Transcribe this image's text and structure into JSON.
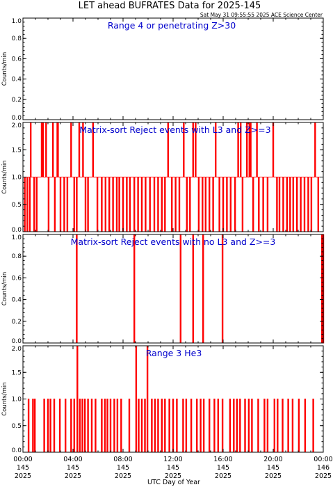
{
  "title": "LET ahead BUFRATES Data for 2025-145",
  "timestamp": "Sat May 31 09:55:55 2025 ACE Science Center",
  "xlabel": "UTC Day of Year",
  "ylabel": "Counts/min",
  "colors": {
    "series": "#ff0000",
    "label": "#0000cc",
    "axis": "#000000"
  },
  "x_ticks": [
    {
      "l1": "00:00",
      "l2": "145",
      "l3": "2025"
    },
    {
      "l1": "04:00",
      "l2": "145",
      "l3": "2025"
    },
    {
      "l1": "08:00",
      "l2": "145",
      "l3": "2025"
    },
    {
      "l1": "12:00",
      "l2": "145",
      "l3": "2025"
    },
    {
      "l1": "16:00",
      "l2": "145",
      "l3": "2025"
    },
    {
      "l1": "20:00",
      "l2": "145",
      "l3": "2025"
    },
    {
      "l1": "00:00",
      "l2": "146",
      "l3": "2025"
    }
  ],
  "chart_data": [
    {
      "type": "line",
      "label": "Range 4 or  penetrating Z>30",
      "xlim_hours": [
        0,
        24
      ],
      "ylim": [
        0,
        1.0
      ],
      "yticks": [
        "0.0",
        "0.2",
        "0.4",
        "0.6",
        "0.8",
        "1.0"
      ],
      "values": [],
      "baseline": 0
    },
    {
      "type": "line",
      "label": "Matrix-sort Reject events with L3 and Z>=3",
      "xlim_hours": [
        0,
        24
      ],
      "ylim": [
        0,
        2.0
      ],
      "yticks": [
        "0.0",
        "0.5",
        "1.0",
        "1.5",
        "2.0"
      ],
      "baseline": 1,
      "values": [
        {
          "t": 0.15,
          "v": 0
        },
        {
          "t": 0.35,
          "v": 0
        },
        {
          "t": 0.55,
          "v": 0
        },
        {
          "t": 0.62,
          "v": 2
        },
        {
          "t": 0.9,
          "v": 0
        },
        {
          "t": 1.1,
          "v": 0
        },
        {
          "t": 1.5,
          "v": 2
        },
        {
          "t": 1.6,
          "v": 2
        },
        {
          "t": 1.85,
          "v": 2
        },
        {
          "t": 2.05,
          "v": 0
        },
        {
          "t": 2.4,
          "v": 2
        },
        {
          "t": 2.55,
          "v": 0
        },
        {
          "t": 2.75,
          "v": 2
        },
        {
          "t": 2.8,
          "v": 2
        },
        {
          "t": 3.0,
          "v": 0
        },
        {
          "t": 3.3,
          "v": 0
        },
        {
          "t": 3.55,
          "v": 0
        },
        {
          "t": 3.85,
          "v": 2
        },
        {
          "t": 4.1,
          "v": 0
        },
        {
          "t": 4.3,
          "v": 0
        },
        {
          "t": 4.5,
          "v": 2
        },
        {
          "t": 4.8,
          "v": 2
        },
        {
          "t": 5.0,
          "v": 0
        },
        {
          "t": 5.2,
          "v": 0
        },
        {
          "t": 5.6,
          "v": 2
        },
        {
          "t": 5.95,
          "v": 0
        },
        {
          "t": 6.3,
          "v": 0
        },
        {
          "t": 6.6,
          "v": 0
        },
        {
          "t": 6.9,
          "v": 0
        },
        {
          "t": 7.2,
          "v": 0
        },
        {
          "t": 7.5,
          "v": 0
        },
        {
          "t": 7.7,
          "v": 0
        },
        {
          "t": 8.0,
          "v": 0
        },
        {
          "t": 8.3,
          "v": 0
        },
        {
          "t": 8.55,
          "v": 0
        },
        {
          "t": 8.9,
          "v": 0
        },
        {
          "t": 9.2,
          "v": 0
        },
        {
          "t": 9.5,
          "v": 0
        },
        {
          "t": 9.8,
          "v": 0
        },
        {
          "t": 10.15,
          "v": 0
        },
        {
          "t": 10.5,
          "v": 0
        },
        {
          "t": 10.8,
          "v": 0
        },
        {
          "t": 11.1,
          "v": 0
        },
        {
          "t": 11.35,
          "v": 0
        },
        {
          "t": 11.6,
          "v": 2
        },
        {
          "t": 11.9,
          "v": 0
        },
        {
          "t": 12.2,
          "v": 0
        },
        {
          "t": 12.5,
          "v": 0
        },
        {
          "t": 12.85,
          "v": 2
        },
        {
          "t": 13.1,
          "v": 0
        },
        {
          "t": 13.35,
          "v": 0
        },
        {
          "t": 13.6,
          "v": 2
        },
        {
          "t": 13.8,
          "v": 2
        },
        {
          "t": 14.05,
          "v": 0
        },
        {
          "t": 14.35,
          "v": 0
        },
        {
          "t": 14.6,
          "v": 0
        },
        {
          "t": 14.9,
          "v": 0
        },
        {
          "t": 15.2,
          "v": 0
        },
        {
          "t": 15.4,
          "v": 2
        },
        {
          "t": 15.7,
          "v": 0
        },
        {
          "t": 16.0,
          "v": 0
        },
        {
          "t": 16.3,
          "v": 0
        },
        {
          "t": 16.6,
          "v": 0
        },
        {
          "t": 16.95,
          "v": 0
        },
        {
          "t": 17.2,
          "v": 2
        },
        {
          "t": 17.4,
          "v": 2
        },
        {
          "t": 17.55,
          "v": 0
        },
        {
          "t": 17.9,
          "v": 2
        },
        {
          "t": 18.1,
          "v": 2
        },
        {
          "t": 18.2,
          "v": 2
        },
        {
          "t": 18.4,
          "v": 0
        },
        {
          "t": 18.7,
          "v": 2
        },
        {
          "t": 18.85,
          "v": 0
        },
        {
          "t": 19.2,
          "v": 0
        },
        {
          "t": 19.55,
          "v": 0
        },
        {
          "t": 20.0,
          "v": 2
        },
        {
          "t": 20.3,
          "v": 0
        },
        {
          "t": 20.5,
          "v": 0
        },
        {
          "t": 20.8,
          "v": 0
        },
        {
          "t": 21.1,
          "v": 0
        },
        {
          "t": 21.35,
          "v": 0
        },
        {
          "t": 21.6,
          "v": 0
        },
        {
          "t": 21.9,
          "v": 0
        },
        {
          "t": 22.2,
          "v": 0
        },
        {
          "t": 22.5,
          "v": 0
        },
        {
          "t": 22.8,
          "v": 0
        },
        {
          "t": 23.05,
          "v": 0
        },
        {
          "t": 23.35,
          "v": 2
        },
        {
          "t": 23.6,
          "v": 0
        }
      ]
    },
    {
      "type": "line",
      "label": "Matrix-sort Reject events with no L3 and Z>=3",
      "xlim_hours": [
        0,
        24
      ],
      "ylim": [
        0,
        1.0
      ],
      "yticks": [
        "0.0",
        "0.2",
        "0.4",
        "0.6",
        "0.8",
        "1.0"
      ],
      "baseline": 0,
      "values": [
        {
          "t": 4.3,
          "v": 1
        },
        {
          "t": 8.9,
          "v": 1
        },
        {
          "t": 12.6,
          "v": 1
        },
        {
          "t": 13.6,
          "v": 1
        },
        {
          "t": 14.4,
          "v": 1
        },
        {
          "t": 15.95,
          "v": 1
        },
        {
          "t": 23.9,
          "v": 1
        },
        {
          "t": 24.0,
          "v": 1
        }
      ]
    },
    {
      "type": "line",
      "label": "Range 3 He3",
      "xlim_hours": [
        0,
        24
      ],
      "ylim": [
        0,
        2.0
      ],
      "yticks": [
        "0.0",
        "0.5",
        "1.0",
        "1.5",
        "2.0"
      ],
      "baseline": 0,
      "values": [
        {
          "t": 0.45,
          "v": 1
        },
        {
          "t": 0.8,
          "v": 1
        },
        {
          "t": 0.95,
          "v": 1
        },
        {
          "t": 1.7,
          "v": 1
        },
        {
          "t": 2.0,
          "v": 1
        },
        {
          "t": 2.2,
          "v": 1
        },
        {
          "t": 2.5,
          "v": 1
        },
        {
          "t": 2.95,
          "v": 1
        },
        {
          "t": 3.4,
          "v": 1
        },
        {
          "t": 3.85,
          "v": 1
        },
        {
          "t": 4.1,
          "v": 1
        },
        {
          "t": 4.35,
          "v": 2
        },
        {
          "t": 4.55,
          "v": 1
        },
        {
          "t": 4.75,
          "v": 1
        },
        {
          "t": 4.95,
          "v": 1
        },
        {
          "t": 5.2,
          "v": 1
        },
        {
          "t": 5.5,
          "v": 1
        },
        {
          "t": 5.8,
          "v": 1
        },
        {
          "t": 6.3,
          "v": 1
        },
        {
          "t": 6.55,
          "v": 1
        },
        {
          "t": 6.75,
          "v": 1
        },
        {
          "t": 7.0,
          "v": 1
        },
        {
          "t": 7.3,
          "v": 1
        },
        {
          "t": 7.55,
          "v": 1
        },
        {
          "t": 7.85,
          "v": 1
        },
        {
          "t": 8.5,
          "v": 1
        },
        {
          "t": 9.05,
          "v": 2
        },
        {
          "t": 9.25,
          "v": 1
        },
        {
          "t": 9.5,
          "v": 1
        },
        {
          "t": 9.75,
          "v": 1
        },
        {
          "t": 9.95,
          "v": 2
        },
        {
          "t": 10.3,
          "v": 1
        },
        {
          "t": 10.55,
          "v": 1
        },
        {
          "t": 10.8,
          "v": 1
        },
        {
          "t": 11.1,
          "v": 1
        },
        {
          "t": 11.35,
          "v": 1
        },
        {
          "t": 11.7,
          "v": 1
        },
        {
          "t": 12.0,
          "v": 1
        },
        {
          "t": 12.3,
          "v": 1
        },
        {
          "t": 12.8,
          "v": 1
        },
        {
          "t": 13.05,
          "v": 1
        },
        {
          "t": 13.45,
          "v": 1
        },
        {
          "t": 13.9,
          "v": 1
        },
        {
          "t": 14.2,
          "v": 1
        },
        {
          "t": 14.45,
          "v": 1
        },
        {
          "t": 14.9,
          "v": 1
        },
        {
          "t": 15.3,
          "v": 1
        },
        {
          "t": 15.6,
          "v": 1
        },
        {
          "t": 15.95,
          "v": 1
        },
        {
          "t": 16.55,
          "v": 1
        },
        {
          "t": 16.85,
          "v": 1
        },
        {
          "t": 17.1,
          "v": 1
        },
        {
          "t": 17.35,
          "v": 1
        },
        {
          "t": 17.75,
          "v": 1
        },
        {
          "t": 18.05,
          "v": 1
        },
        {
          "t": 18.3,
          "v": 1
        },
        {
          "t": 18.8,
          "v": 1
        },
        {
          "t": 19.3,
          "v": 1
        },
        {
          "t": 19.55,
          "v": 1
        },
        {
          "t": 20.1,
          "v": 1
        },
        {
          "t": 20.35,
          "v": 1
        },
        {
          "t": 20.75,
          "v": 1
        },
        {
          "t": 21.2,
          "v": 1
        },
        {
          "t": 21.55,
          "v": 1
        },
        {
          "t": 22.05,
          "v": 1
        },
        {
          "t": 22.55,
          "v": 1
        },
        {
          "t": 23.2,
          "v": 1
        }
      ]
    }
  ]
}
